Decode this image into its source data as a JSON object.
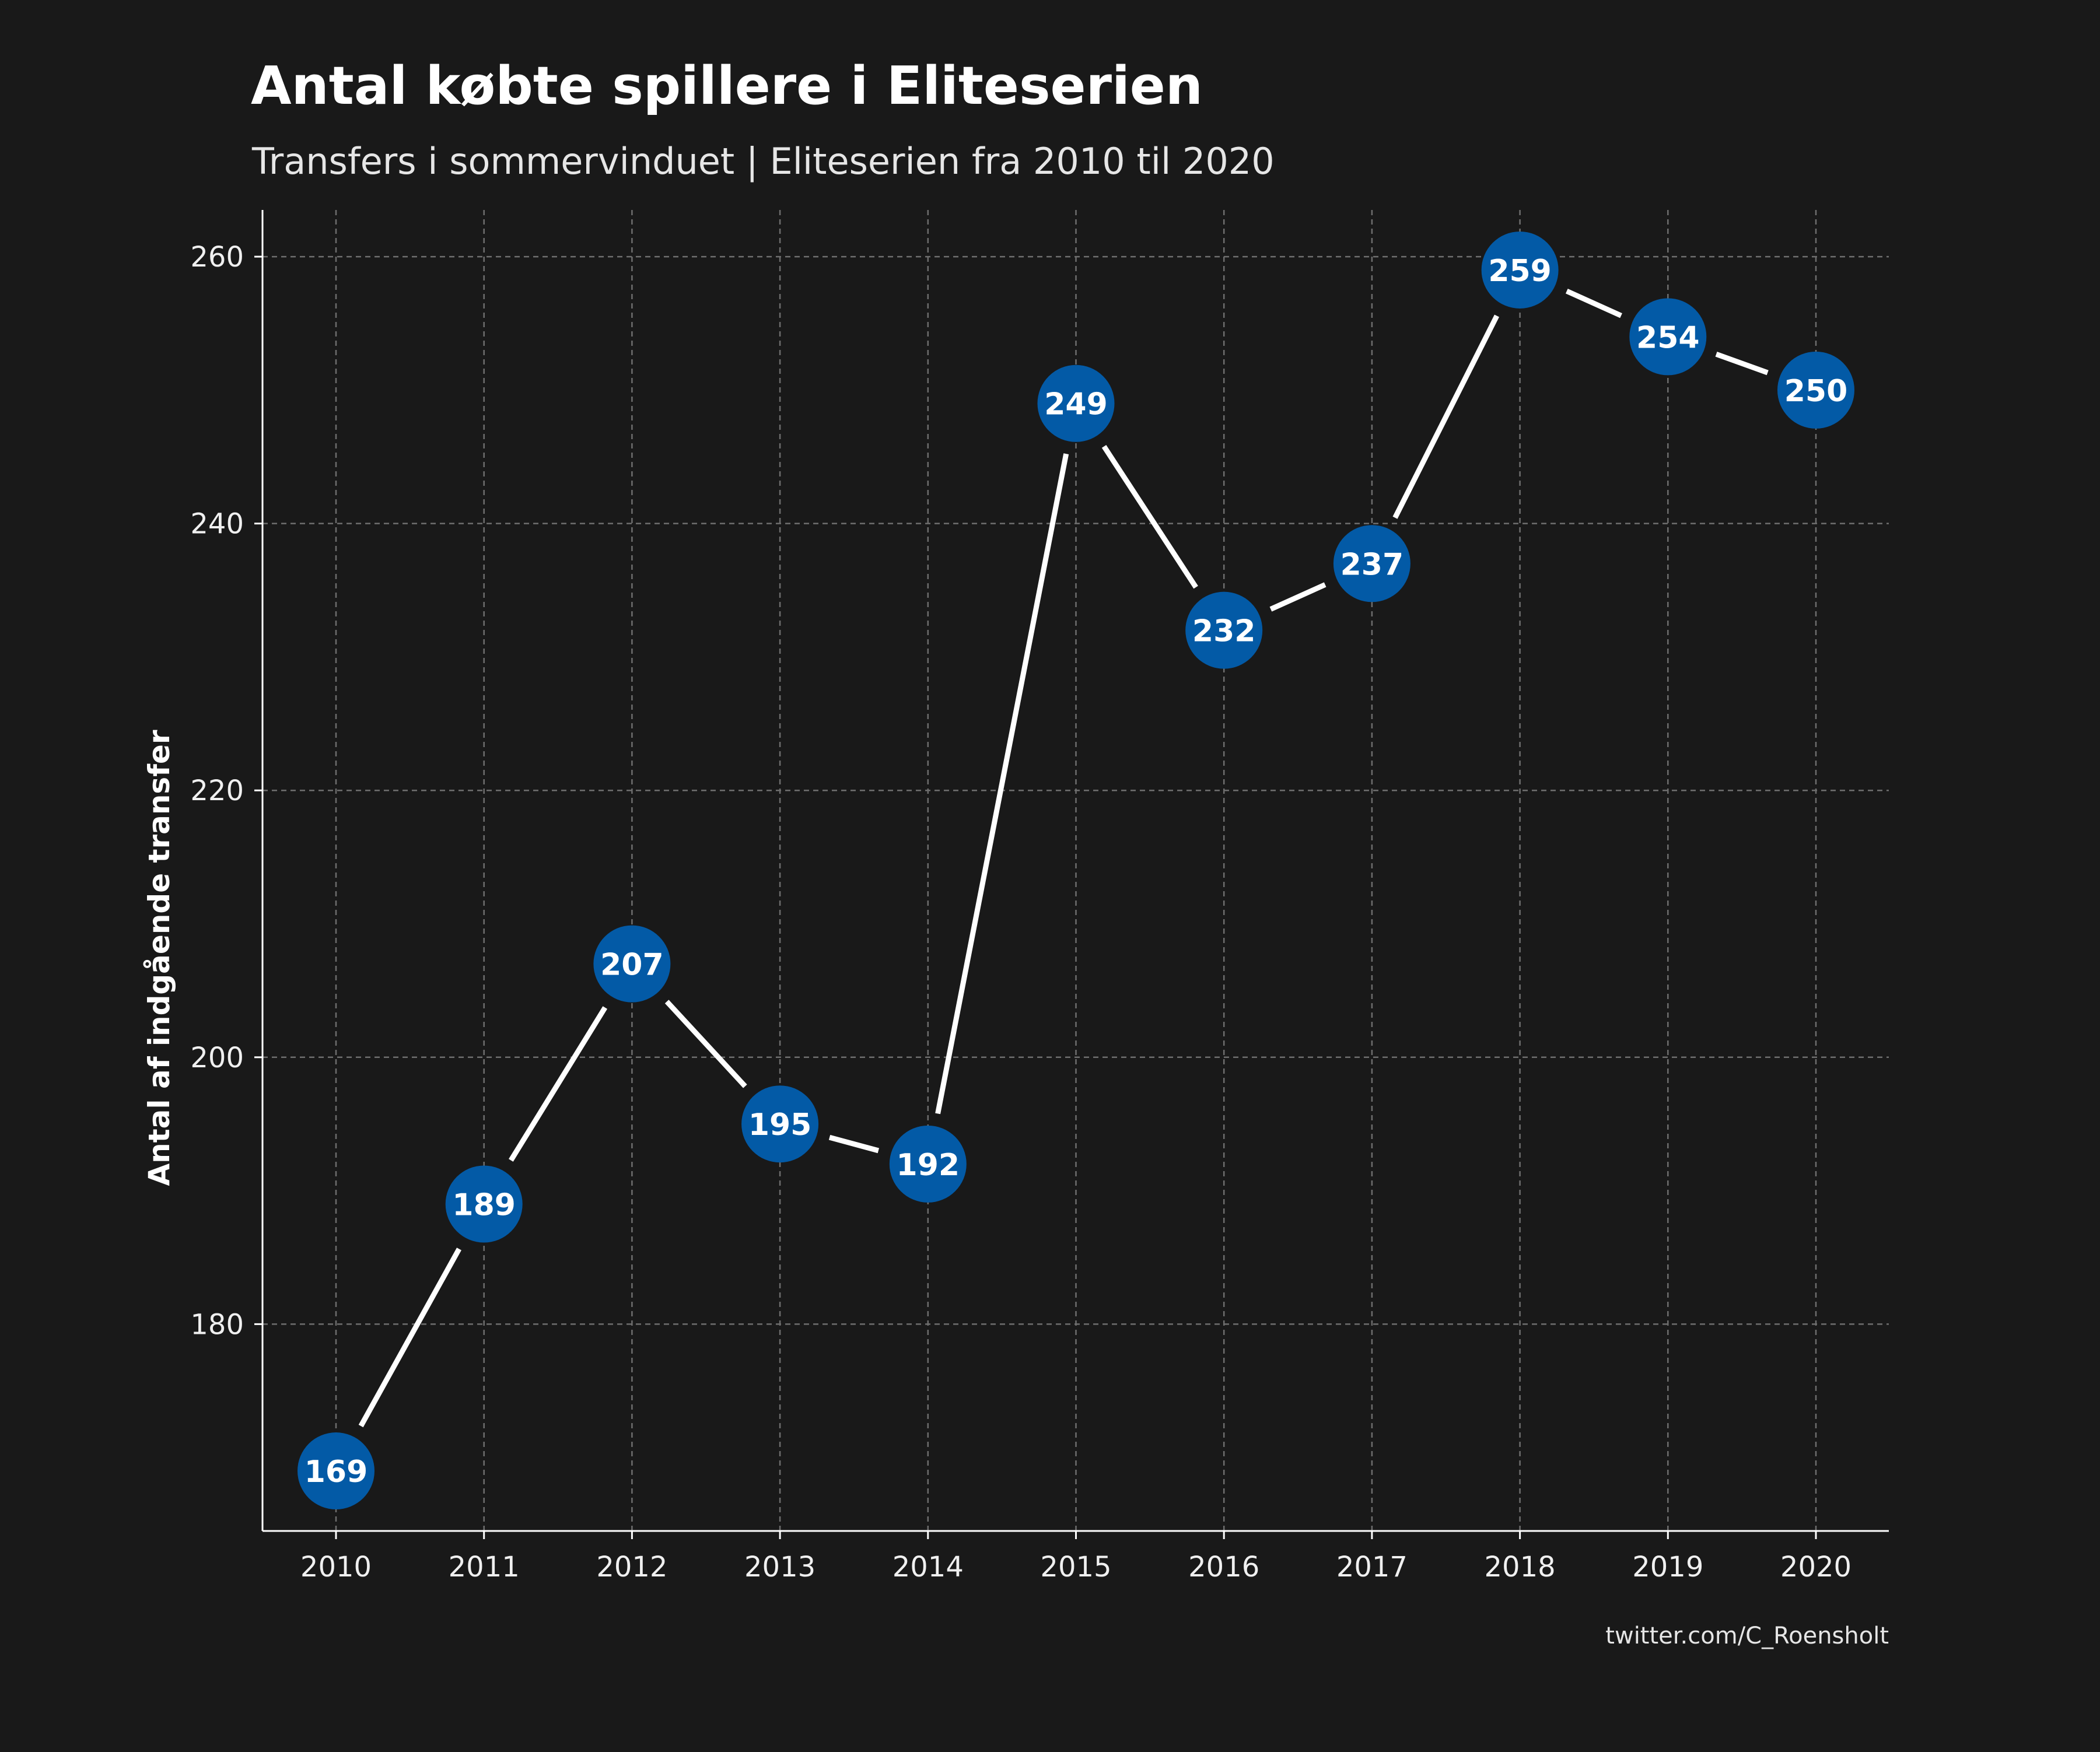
{
  "chart_data": {
    "type": "line",
    "title": "Antal købte spillere i Eliteserien",
    "subtitle": "Transfers i sommervinduet | Eliteserien fra 2010 til 2020",
    "xlabel": "",
    "ylabel": "Antal af indgående transfer",
    "caption": "twitter.com/C_Roensholt",
    "x": [
      "2010",
      "2011",
      "2012",
      "2013",
      "2014",
      "2015",
      "2016",
      "2017",
      "2018",
      "2019",
      "2020"
    ],
    "values": [
      169,
      189,
      207,
      195,
      192,
      249,
      232,
      237,
      259,
      254,
      250
    ],
    "y_ticks": [
      180,
      200,
      220,
      240,
      260
    ],
    "ylim": [
      164.5,
      263.5
    ],
    "grid": true,
    "legend": "none",
    "colors": {
      "background": "#191919",
      "line": "#ffffff",
      "marker": "#035aa6",
      "grid": "#6e6e6e",
      "axis": "#ffffff",
      "text": "#ffffff"
    }
  }
}
